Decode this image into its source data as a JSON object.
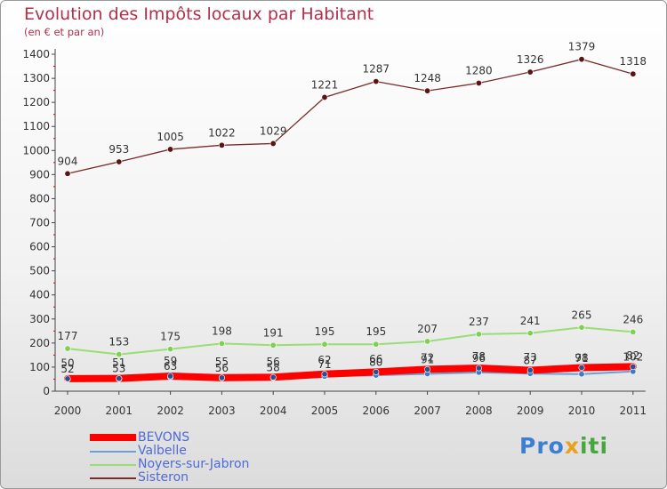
{
  "header": {
    "title": "Evolution des Impôts locaux par Habitant",
    "subtitle": "(en € et par an)"
  },
  "logo": {
    "part1": "Pro",
    "part2": "x",
    "part3": "iti"
  },
  "chart_data": {
    "type": "line",
    "x": [
      "2000",
      "2001",
      "2002",
      "2003",
      "2004",
      "2005",
      "2006",
      "2007",
      "2008",
      "2009",
      "2010",
      "2011"
    ],
    "ylim": [
      0,
      1400
    ],
    "yticks": [
      "0",
      "100",
      "200",
      "300",
      "400",
      "500",
      "600",
      "700",
      "800",
      "900",
      "1000",
      "1100",
      "1200",
      "1300",
      "1400"
    ],
    "grid": false,
    "legend_position": "bottom-left",
    "series": [
      {
        "name": "BEVONS",
        "color": "#ff0000",
        "values": [
          52,
          53,
          63,
          56,
          58,
          71,
          80,
          91,
          96,
          87,
          98,
          102
        ],
        "labels": [
          "52",
          "53",
          "63",
          "56",
          "58",
          "71",
          "80",
          "91",
          "96",
          "87",
          "98",
          "102"
        ]
      },
      {
        "name": "Valbelle",
        "color": "#6aa0d8",
        "values": [
          50,
          51,
          59,
          55,
          56,
          62,
          66,
          72,
          78,
          73,
          71,
          82
        ],
        "labels": [
          "50",
          "51",
          "59",
          "55",
          "56",
          "62",
          "66",
          "72",
          "78",
          "73",
          "71",
          "82"
        ]
      },
      {
        "name": "Noyers-sur-Jabron",
        "color": "#99dd77",
        "values": [
          177,
          153,
          175,
          198,
          191,
          195,
          195,
          207,
          237,
          241,
          265,
          246
        ],
        "labels": [
          "177",
          "153",
          "175",
          "198",
          "191",
          "195",
          "195",
          "207",
          "237",
          "241",
          "265",
          "246"
        ]
      },
      {
        "name": "Sisteron",
        "color": "#7a2b2b",
        "values": [
          904,
          953,
          1005,
          1022,
          1029,
          1221,
          1287,
          1248,
          1280,
          1326,
          1379,
          1318
        ],
        "labels": [
          "904",
          "953",
          "1005",
          "1022",
          "1029",
          "1221",
          "1287",
          "1248",
          "1280",
          "1326",
          "1379",
          "1318"
        ]
      }
    ]
  }
}
